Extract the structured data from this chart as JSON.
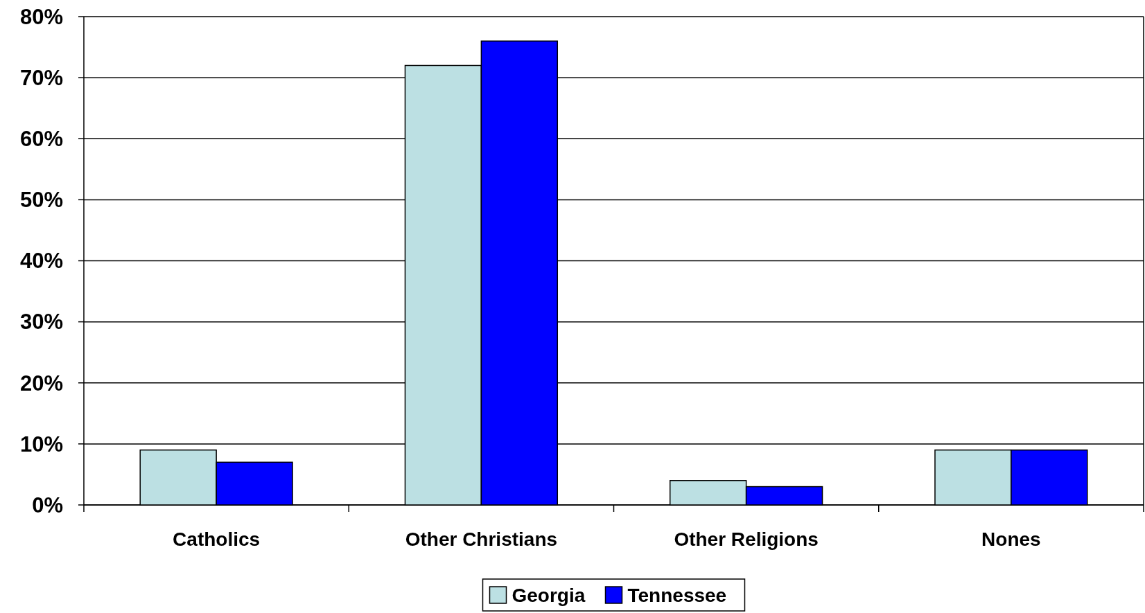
{
  "chart_data": {
    "type": "bar",
    "categories": [
      "Catholics",
      "Other Christians",
      "Other Religions",
      "Nones"
    ],
    "series": [
      {
        "name": "Georgia",
        "color": "#bce0e3",
        "values": [
          9,
          72,
          4,
          9
        ]
      },
      {
        "name": "Tennessee",
        "color": "#0000ff",
        "values": [
          7,
          76,
          3,
          9
        ]
      }
    ],
    "ylim": [
      0,
      80
    ],
    "yticks": [
      {
        "value": 0,
        "label": "0%"
      },
      {
        "value": 10,
        "label": "10%"
      },
      {
        "value": 20,
        "label": "20%"
      },
      {
        "value": 30,
        "label": "30%"
      },
      {
        "value": 40,
        "label": "40%"
      },
      {
        "value": 50,
        "label": "50%"
      },
      {
        "value": 60,
        "label": "60%"
      },
      {
        "value": 70,
        "label": "70%"
      },
      {
        "value": 80,
        "label": "80%"
      }
    ],
    "grid": "y",
    "legend": "bottom"
  }
}
